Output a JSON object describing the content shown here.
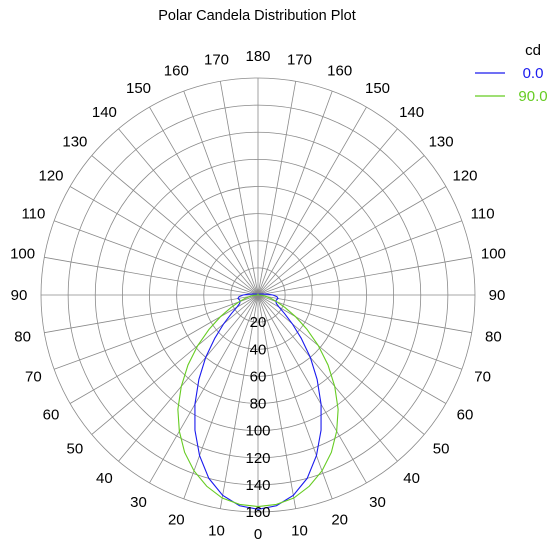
{
  "chart_data": {
    "type": "polar",
    "title": "Polar Candela Distribution Plot",
    "unit": "cd",
    "angle_labels": [
      {
        "angle": 0,
        "label": "0"
      },
      {
        "angle": 10,
        "label": "10"
      },
      {
        "angle": -10,
        "label": "10"
      },
      {
        "angle": 20,
        "label": "20"
      },
      {
        "angle": -20,
        "label": "20"
      },
      {
        "angle": 30,
        "label": "30"
      },
      {
        "angle": -30,
        "label": "30"
      },
      {
        "angle": 40,
        "label": "40"
      },
      {
        "angle": -40,
        "label": "40"
      },
      {
        "angle": 50,
        "label": "50"
      },
      {
        "angle": -50,
        "label": "50"
      },
      {
        "angle": 60,
        "label": "60"
      },
      {
        "angle": -60,
        "label": "60"
      },
      {
        "angle": 70,
        "label": "70"
      },
      {
        "angle": -70,
        "label": "70"
      },
      {
        "angle": 80,
        "label": "80"
      },
      {
        "angle": -80,
        "label": "80"
      },
      {
        "angle": 90,
        "label": "90"
      },
      {
        "angle": -90,
        "label": "90"
      },
      {
        "angle": 100,
        "label": "100"
      },
      {
        "angle": -100,
        "label": "100"
      },
      {
        "angle": 110,
        "label": "110"
      },
      {
        "angle": -110,
        "label": "110"
      },
      {
        "angle": 120,
        "label": "120"
      },
      {
        "angle": -120,
        "label": "120"
      },
      {
        "angle": 130,
        "label": "130"
      },
      {
        "angle": -130,
        "label": "130"
      },
      {
        "angle": 140,
        "label": "140"
      },
      {
        "angle": -140,
        "label": "140"
      },
      {
        "angle": 150,
        "label": "150"
      },
      {
        "angle": -150,
        "label": "150"
      },
      {
        "angle": 160,
        "label": "160"
      },
      {
        "angle": -160,
        "label": "160"
      },
      {
        "angle": 170,
        "label": "170"
      },
      {
        "angle": -170,
        "label": "170"
      },
      {
        "angle": 180,
        "label": "180"
      }
    ],
    "radial_ticks": [
      20,
      40,
      60,
      80,
      100,
      120,
      140,
      160
    ],
    "r_max": 160,
    "grid": true,
    "legend_position": "top-right",
    "series": [
      {
        "name": "0.0",
        "color": "#1a1aee",
        "points": [
          [
            0,
            158
          ],
          [
            5,
            156
          ],
          [
            10,
            150
          ],
          [
            15,
            140
          ],
          [
            20,
            126
          ],
          [
            25,
            110
          ],
          [
            30,
            93
          ],
          [
            35,
            76
          ],
          [
            40,
            60
          ],
          [
            45,
            45
          ],
          [
            50,
            33
          ],
          [
            55,
            24
          ],
          [
            60,
            18
          ],
          [
            65,
            15
          ],
          [
            70,
            14
          ],
          [
            75,
            14
          ],
          [
            80,
            15
          ],
          [
            85,
            14
          ],
          [
            90,
            11
          ],
          [
            95,
            7
          ],
          [
            100,
            4
          ],
          [
            110,
            2
          ],
          [
            130,
            1
          ],
          [
            150,
            0.5
          ],
          [
            180,
            0.5
          ]
        ]
      },
      {
        "name": "90.0",
        "color": "#66cc22",
        "points": [
          [
            0,
            156
          ],
          [
            5,
            155
          ],
          [
            10,
            152
          ],
          [
            15,
            146
          ],
          [
            20,
            138
          ],
          [
            25,
            128
          ],
          [
            30,
            116
          ],
          [
            35,
            103
          ],
          [
            40,
            88
          ],
          [
            45,
            73
          ],
          [
            50,
            58
          ],
          [
            55,
            44
          ],
          [
            60,
            32
          ],
          [
            65,
            22
          ],
          [
            70,
            15
          ],
          [
            75,
            10
          ],
          [
            80,
            6
          ],
          [
            85,
            3
          ],
          [
            90,
            1
          ],
          [
            100,
            0.5
          ],
          [
            180,
            0.5
          ]
        ]
      }
    ]
  }
}
